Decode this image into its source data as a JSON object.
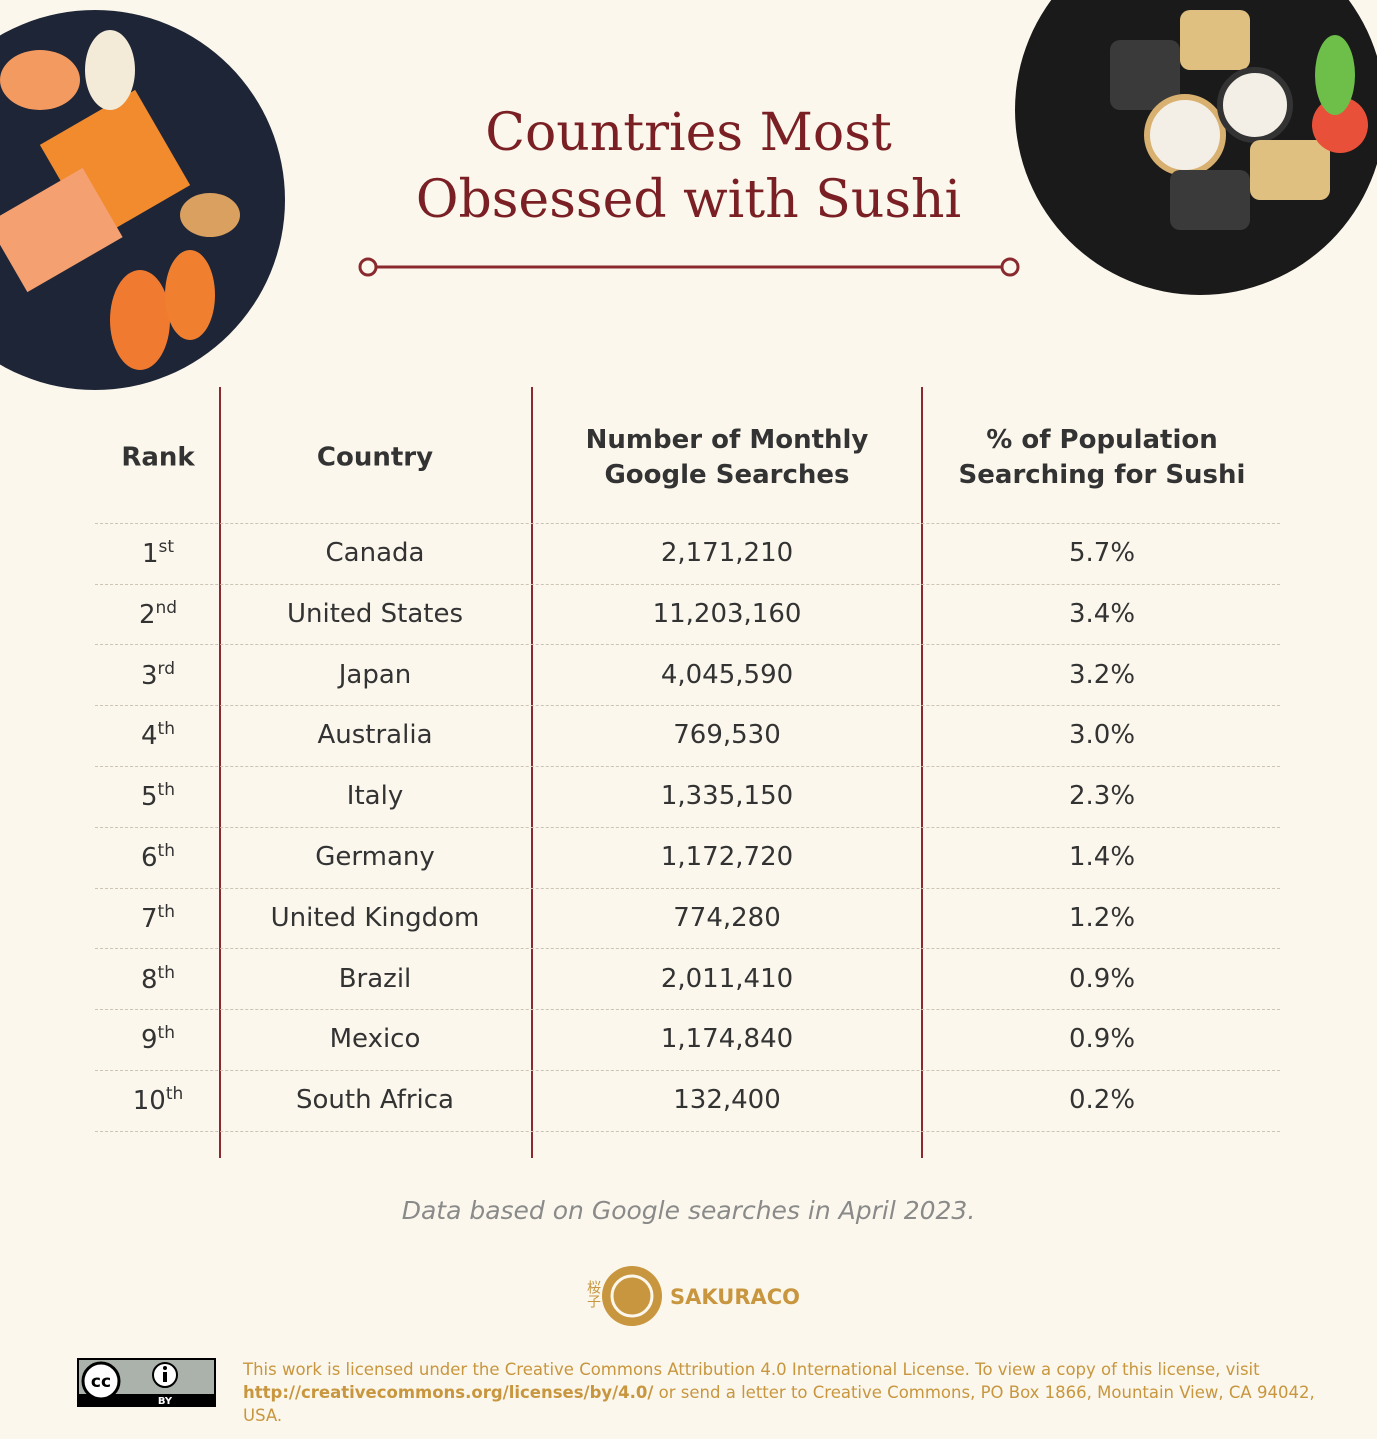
{
  "header": {
    "title_lines": [
      "Countries Most",
      "Obsessed with Sushi"
    ]
  },
  "table": {
    "columns": [
      "Rank",
      "Country",
      [
        "Number of Monthly",
        "Google Searches"
      ],
      [
        "% of Population",
        "Searching for Sushi"
      ]
    ],
    "rows": [
      [
        {
          "number": "1",
          "suffix": "st"
        },
        "Canada",
        "2,171,210",
        "5.7%"
      ],
      [
        {
          "number": "2",
          "suffix": "nd"
        },
        "United States",
        "11,203,160",
        "3.4%"
      ],
      [
        {
          "number": "3",
          "suffix": "rd"
        },
        "Japan",
        "4,045,590",
        "3.2%"
      ],
      [
        {
          "number": "4",
          "suffix": "th"
        },
        "Australia",
        "769,530",
        "3.0%"
      ],
      [
        {
          "number": "5",
          "suffix": "th"
        },
        "Italy",
        "1,335,150",
        "2.3%"
      ],
      [
        {
          "number": "6",
          "suffix": "th"
        },
        "Germany",
        "1,172,720",
        "1.4%"
      ],
      [
        {
          "number": "7",
          "suffix": "th"
        },
        "United Kingdom",
        "774,280",
        "1.2%"
      ],
      [
        {
          "number": "8",
          "suffix": "th"
        },
        "Brazil",
        "2,011,410",
        "0.9%"
      ],
      [
        {
          "number": "9",
          "suffix": "th"
        },
        "Mexico",
        "1,174,840",
        "0.9%"
      ],
      [
        {
          "number": "10",
          "suffix": "th"
        },
        "South Africa",
        "132,400",
        "0.2%"
      ]
    ]
  },
  "footnote": "Data based on Google searches in April 2023.",
  "logo": {
    "kanji": "桜子",
    "name": "SAKURACO"
  },
  "license": {
    "badge": "BY",
    "text_before": "This work is licensed under the Creative Commons Attribution 4.0 International License. To view a copy of this license, visit",
    "link": "http://creativecommons.org/licenses/by/4.0/",
    "text_after": " or send a letter to Creative Commons, PO Box 1866, Mountain View, CA 94042, USA."
  }
}
